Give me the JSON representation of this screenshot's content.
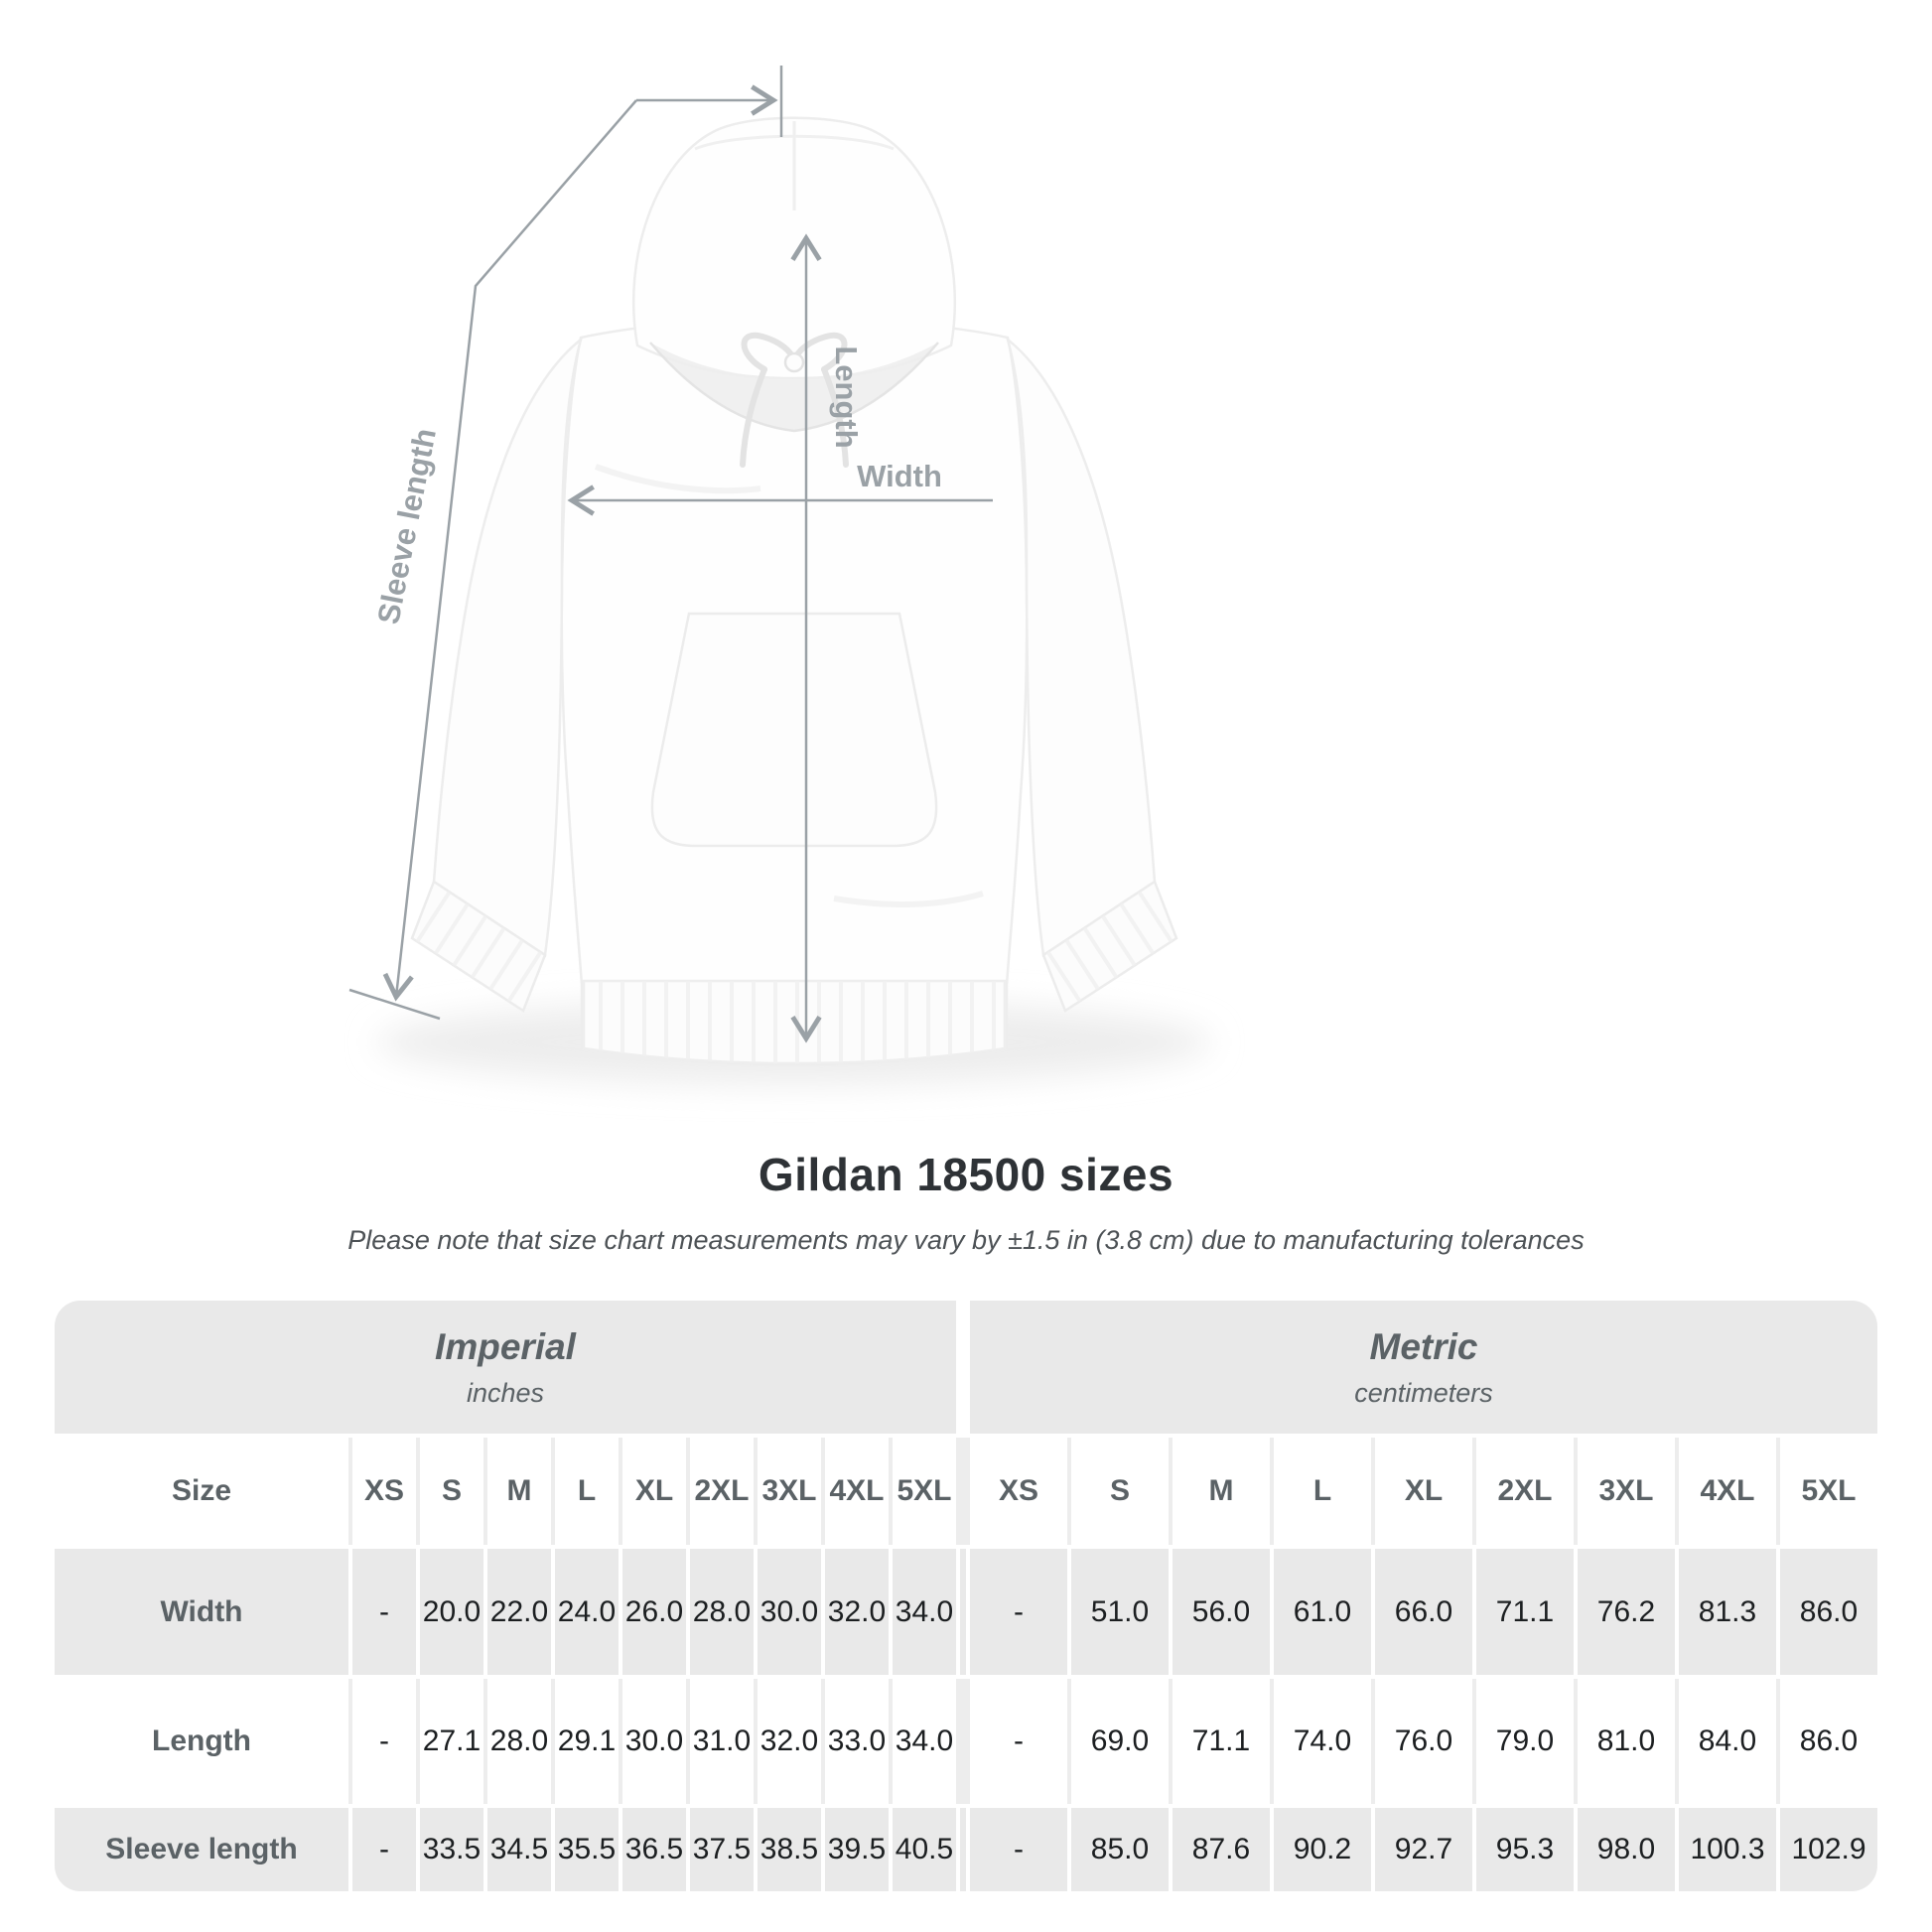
{
  "title": "Gildan 18500 sizes",
  "subtitle": "Please note that size chart measurements may vary by ±1.5 in (3.8 cm) due to manufacturing tolerances",
  "figure": {
    "labels": {
      "sleeve": "Sleeve length",
      "length": "Length",
      "width": "Width"
    }
  },
  "colors": {
    "table_gray": "#e9e9e9",
    "annotation_gray": "#9aa1a6",
    "heading_gray": "#5b6266",
    "value_dark": "#1c1f21"
  },
  "table": {
    "sections": [
      {
        "name": "Imperial",
        "unit": "inches"
      },
      {
        "name": "Metric",
        "unit": "centimeters"
      }
    ],
    "size_header": "Size",
    "sizes": [
      "XS",
      "S",
      "M",
      "L",
      "XL",
      "2XL",
      "3XL",
      "4XL",
      "5XL"
    ],
    "rows": [
      {
        "label": "Width",
        "imperial": [
          "-",
          "20.0",
          "22.0",
          "24.0",
          "26.0",
          "28.0",
          "30.0",
          "32.0",
          "34.0"
        ],
        "metric": [
          "-",
          "51.0",
          "56.0",
          "61.0",
          "66.0",
          "71.1",
          "76.2",
          "81.3",
          "86.0"
        ]
      },
      {
        "label": "Length",
        "imperial": [
          "-",
          "27.1",
          "28.0",
          "29.1",
          "30.0",
          "31.0",
          "32.0",
          "33.0",
          "34.0"
        ],
        "metric": [
          "-",
          "69.0",
          "71.1",
          "74.0",
          "76.0",
          "79.0",
          "81.0",
          "84.0",
          "86.0"
        ]
      },
      {
        "label": "Sleeve length",
        "imperial": [
          "-",
          "33.5",
          "34.5",
          "35.5",
          "36.5",
          "37.5",
          "38.5",
          "39.5",
          "40.5"
        ],
        "metric": [
          "-",
          "85.0",
          "87.6",
          "90.2",
          "92.7",
          "95.3",
          "98.0",
          "100.3",
          "102.9"
        ]
      }
    ]
  }
}
